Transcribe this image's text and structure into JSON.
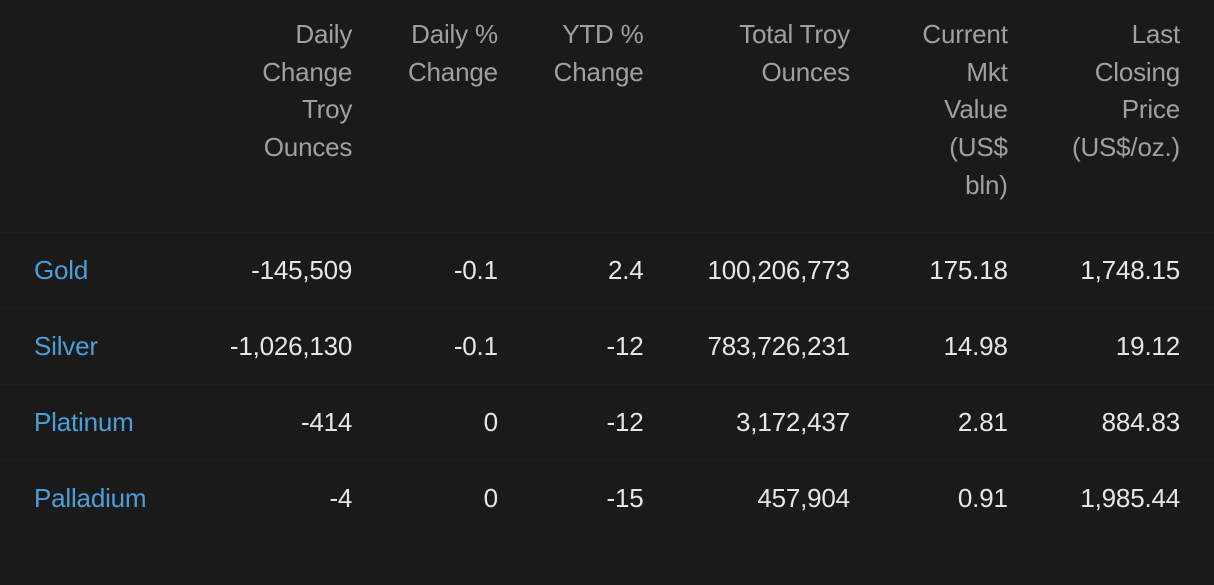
{
  "table": {
    "type": "table",
    "background_color": "#1a1a1a",
    "header_text_color": "#a0a0a0",
    "body_text_color": "#e6e6e6",
    "link_color": "#4a9fd8",
    "font_size_pt": 20,
    "columns": [
      {
        "key": "metal",
        "label": "",
        "align": "left",
        "width_pct": 16
      },
      {
        "key": "daily_change_oz",
        "label": "Daily Change Troy Ounces",
        "align": "right",
        "width_pct": 14
      },
      {
        "key": "daily_pct_change",
        "label": "Daily % Change",
        "align": "right",
        "width_pct": 12
      },
      {
        "key": "ytd_pct_change",
        "label": "YTD % Change",
        "align": "right",
        "width_pct": 12
      },
      {
        "key": "total_troy_oz",
        "label": "Total Troy Ounces",
        "align": "right",
        "width_pct": 17
      },
      {
        "key": "current_mkt_value",
        "label": "Current Mkt Value (US$ bln)",
        "align": "right",
        "width_pct": 13
      },
      {
        "key": "last_close",
        "label": "Last Closing Price (US$/oz.)",
        "align": "right",
        "width_pct": 16
      }
    ],
    "header_lines": {
      "daily_change_oz": [
        "Daily",
        "Change",
        "Troy",
        "Ounces"
      ],
      "daily_pct_change": [
        "Daily %",
        "Change"
      ],
      "ytd_pct_change": [
        "YTD %",
        "Change"
      ],
      "total_troy_oz": [
        "Total Troy",
        "Ounces"
      ],
      "current_mkt_value": [
        "Current",
        "Mkt",
        "Value",
        "(US$",
        "bln)"
      ],
      "last_close": [
        "Last",
        "Closing",
        "Price",
        "(US$/oz.)"
      ]
    },
    "rows": [
      {
        "metal": "Gold",
        "daily_change_oz": "-145,509",
        "daily_pct_change": "-0.1",
        "ytd_pct_change": "2.4",
        "total_troy_oz": "100,206,773",
        "current_mkt_value": "175.18",
        "last_close": "1,748.15"
      },
      {
        "metal": "Silver",
        "daily_change_oz": "-1,026,130",
        "daily_pct_change": "-0.1",
        "ytd_pct_change": "-12",
        "total_troy_oz": "783,726,231",
        "current_mkt_value": "14.98",
        "last_close": "19.12"
      },
      {
        "metal": "Platinum",
        "daily_change_oz": "-414",
        "daily_pct_change": "0",
        "ytd_pct_change": "-12",
        "total_troy_oz": "3,172,437",
        "current_mkt_value": "2.81",
        "last_close": "884.83"
      },
      {
        "metal": "Palladium",
        "daily_change_oz": "-4",
        "daily_pct_change": "0",
        "ytd_pct_change": "-15",
        "total_troy_oz": "457,904",
        "current_mkt_value": "0.91",
        "last_close": "1,985.44"
      }
    ]
  }
}
